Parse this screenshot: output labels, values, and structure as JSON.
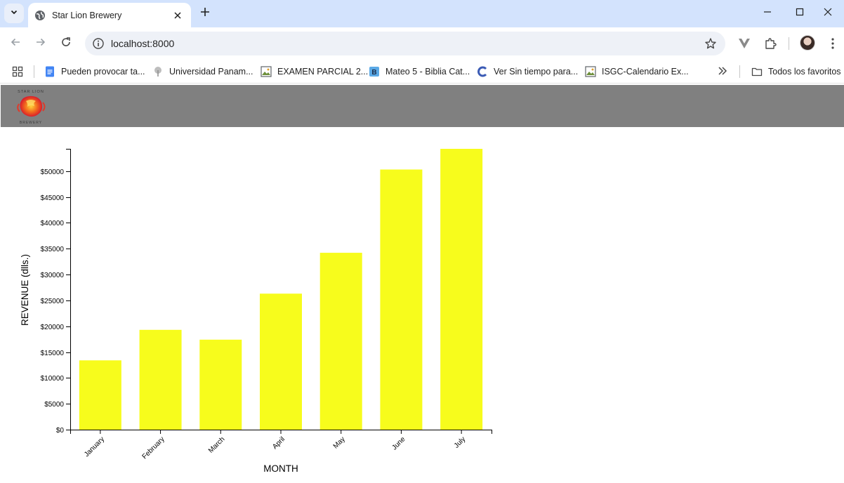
{
  "browser": {
    "tab": {
      "title": "Star Lion Brewery"
    },
    "url": "localhost:8000",
    "bookmarks": [
      {
        "label": "Pueden provocar ta...",
        "icon": "docs-icon"
      },
      {
        "label": "Universidad Panam...",
        "icon": "university-icon"
      },
      {
        "label": "EXAMEN PARCIAL 2...",
        "icon": "image-icon"
      },
      {
        "label": "Mateo 5 - Biblia Cat...",
        "icon": "bible-icon"
      },
      {
        "label": "Ver Sin tiempo para...",
        "icon": "c-icon"
      },
      {
        "label": "ISGC-Calendario Ex...",
        "icon": "image-icon"
      }
    ],
    "all_bookmarks": "Todos los favoritos"
  },
  "page": {
    "logo": {
      "top_text": "STAR LION",
      "bottom_text": "BREWERY"
    }
  },
  "chart_data": {
    "type": "bar",
    "categories": [
      "January",
      "February",
      "March",
      "April",
      "May",
      "June",
      "July"
    ],
    "values": [
      13400,
      19300,
      17400,
      26300,
      34200,
      50300,
      54300
    ],
    "yticks": [
      0,
      5000,
      10000,
      15000,
      20000,
      25000,
      30000,
      35000,
      40000,
      45000,
      50000
    ],
    "ytick_labels": [
      "$0",
      "$5000",
      "$10000",
      "$15000",
      "$20000",
      "$25000",
      "$30000",
      "$35000",
      "$40000",
      "$45000",
      "$50000"
    ],
    "ylim": [
      0,
      54300
    ],
    "xlabel": "MONTH",
    "ylabel": "REVENUE (dlls.)",
    "bar_color": "#f7fc1c",
    "grid": false
  }
}
